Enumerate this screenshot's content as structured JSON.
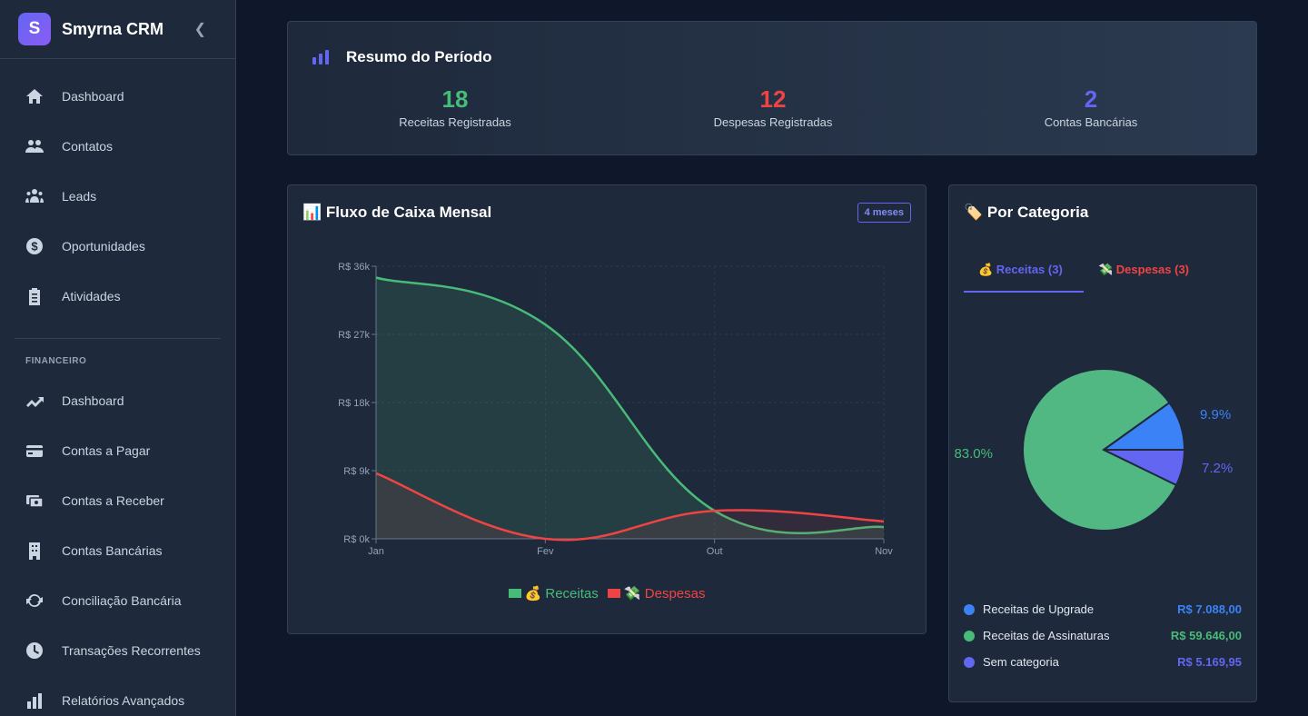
{
  "sidebar": {
    "brand_initial": "S",
    "brand_name": "Smyrna CRM",
    "collapse_icon": "chevron-left-icon",
    "items": [
      {
        "label": "Dashboard",
        "icon": "home-icon"
      },
      {
        "label": "Contatos",
        "icon": "users-icon"
      },
      {
        "label": "Leads",
        "icon": "user-group-icon"
      },
      {
        "label": "Oportunidades",
        "icon": "dollar-circle-icon"
      },
      {
        "label": "Atividades",
        "icon": "clipboard-icon"
      }
    ],
    "section": "FINANCEIRO",
    "fin_items": [
      {
        "label": "Dashboard",
        "icon": "trending-up-icon"
      },
      {
        "label": "Contas a Pagar",
        "icon": "credit-card-icon"
      },
      {
        "label": "Contas a Receber",
        "icon": "money-icon"
      },
      {
        "label": "Contas Bancárias",
        "icon": "building-icon"
      },
      {
        "label": "Conciliação Bancária",
        "icon": "sync-icon"
      },
      {
        "label": "Transações Recorrentes",
        "icon": "clock-icon"
      },
      {
        "label": "Relatórios Avançados",
        "icon": "bar-chart-icon"
      }
    ]
  },
  "summary": {
    "title": "Resumo do Período",
    "stats": [
      {
        "value": "18",
        "label": "Receitas Registradas",
        "color": "#48bb78"
      },
      {
        "value": "12",
        "label": "Despesas Registradas",
        "color": "#ef4444"
      },
      {
        "value": "2",
        "label": "Contas Bancárias",
        "color": "#6366f1"
      }
    ]
  },
  "cashflow": {
    "title": "📊 Fluxo de Caixa Mensal",
    "badge": "4 meses",
    "legend_receitas": "💰 Receitas",
    "legend_despesas": "💸 Despesas"
  },
  "category": {
    "title": "🏷️ Por Categoria",
    "tab_receitas": "💰 Receitas (3)",
    "tab_despesas": "💸 Despesas (3)",
    "items": [
      {
        "label": "Receitas de Upgrade",
        "value": "R$ 7.088,00",
        "color": "#3b82f6"
      },
      {
        "label": "Receitas de Assinaturas",
        "value": "R$ 59.646,00",
        "color": "#48bb78"
      },
      {
        "label": "Sem categoria",
        "value": "R$ 5.169,95",
        "color": "#6366f1"
      }
    ]
  },
  "chart_data": [
    {
      "type": "area",
      "categories": [
        "Jan",
        "Fev",
        "Out",
        "Nov"
      ],
      "yticks": [
        "R$ 0k",
        "R$ 9k",
        "R$ 18k",
        "R$ 27k",
        "R$ 36k"
      ],
      "ylim": [
        0,
        36000
      ],
      "grid": true,
      "legend": "bottom",
      "series": [
        {
          "name": "💰 Receitas",
          "color": "#48bb78",
          "values": [
            34500,
            28300,
            3700,
            1550
          ]
        },
        {
          "name": "💸 Despesas",
          "color": "#ef4444",
          "values": [
            8650,
            0,
            3700,
            2300
          ]
        }
      ]
    },
    {
      "type": "pie",
      "labels": [
        "Receitas de Upgrade",
        "Receitas de Assinaturas",
        "Sem categoria"
      ],
      "values": [
        9.9,
        83.0,
        7.2
      ],
      "data_labels": [
        "9.9%",
        "83.0%",
        "7.2%"
      ],
      "colors": [
        "#3b82f6",
        "#52b883",
        "#6366f1"
      ]
    }
  ]
}
